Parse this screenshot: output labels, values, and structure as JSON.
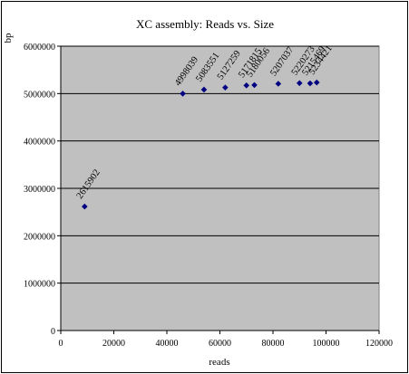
{
  "chart_data": {
    "type": "scatter",
    "title": "XC assembly: Reads vs. Size",
    "xlabel": "reads",
    "ylabel": "bp",
    "xlim": [
      0,
      120000
    ],
    "ylim": [
      0,
      6000000
    ],
    "x_ticks": [
      0,
      20000,
      40000,
      60000,
      80000,
      100000,
      120000
    ],
    "y_ticks": [
      0,
      1000000,
      2000000,
      3000000,
      4000000,
      5000000,
      6000000
    ],
    "grid": "horizontal",
    "legend": "none",
    "series": [
      {
        "color": "#000080",
        "marker": "diamond",
        "points": [
          {
            "x": 9000,
            "y": 2615902,
            "label": "2615902"
          },
          {
            "x": 46000,
            "y": 4998039,
            "label": "4998039"
          },
          {
            "x": 54000,
            "y": 5083551,
            "label": "5083551"
          },
          {
            "x": 62000,
            "y": 5127259,
            "label": "5127259"
          },
          {
            "x": 70000,
            "y": 5171815,
            "label": "5171815"
          },
          {
            "x": 73000,
            "y": 5180056,
            "label": "5180056"
          },
          {
            "x": 82000,
            "y": 5207037,
            "label": "5207037"
          },
          {
            "x": 90000,
            "y": 5220273,
            "label": "5220273"
          },
          {
            "x": 94000,
            "y": 5215469,
            "label": "5215469"
          },
          {
            "x": 96500,
            "y": 5234421,
            "label": "5234421"
          }
        ]
      }
    ],
    "colors": {
      "plot_background": "#c0c0c0",
      "gridline": "#000000",
      "marker": "#000080"
    }
  }
}
